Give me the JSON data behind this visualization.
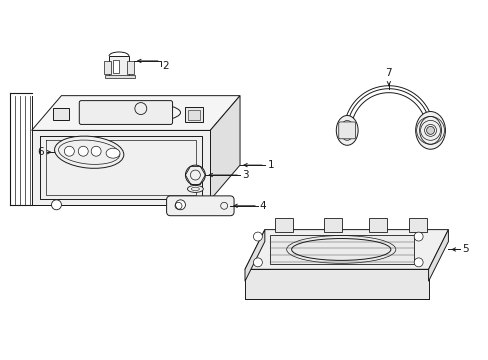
{
  "background_color": "#ffffff",
  "line_color": "#1a1a1a",
  "fig_width": 4.89,
  "fig_height": 3.6,
  "dpi": 100,
  "label_fontsize": 7.5
}
